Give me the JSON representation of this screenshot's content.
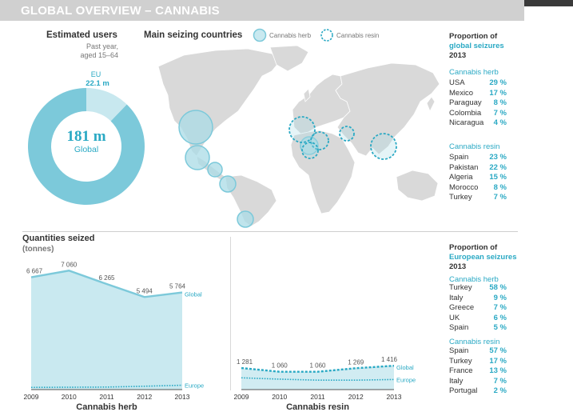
{
  "header": {
    "title": "GLOBAL OVERVIEW – CANNABIS"
  },
  "users": {
    "title": "Estimated users",
    "sub1": "Past year,",
    "sub2": "aged 15–64",
    "eu_label": "EU",
    "eu_value": "22.1 m",
    "global_value": "181 m",
    "global_label": "Global"
  },
  "map": {
    "title": "Main seizing countries",
    "legend_herb": "Cannabis herb",
    "legend_resin": "Cannabis resin"
  },
  "global_seizures": {
    "title": "Proportion of",
    "title2": "global seizures",
    "year": "2013",
    "herb_title": "Cannabis herb",
    "herb": [
      {
        "country": "USA",
        "pct": "29 %"
      },
      {
        "country": "Mexico",
        "pct": "17 %"
      },
      {
        "country": "Paraguay",
        "pct": "8 %"
      },
      {
        "country": "Colombia",
        "pct": "7 %"
      },
      {
        "country": "Nicaragua",
        "pct": "4 %"
      }
    ],
    "resin_title": "Cannabis resin",
    "resin": [
      {
        "country": "Spain",
        "pct": "23 %"
      },
      {
        "country": "Pakistan",
        "pct": "22 %"
      },
      {
        "country": "Algeria",
        "pct": "15 %"
      },
      {
        "country": "Morocco",
        "pct": "8 %"
      },
      {
        "country": "Turkey",
        "pct": "7 %"
      }
    ]
  },
  "european_seizures": {
    "title": "Proportion of",
    "title2": "European seizures",
    "year": "2013",
    "herb_title": "Cannabis herb",
    "herb": [
      {
        "country": "Turkey",
        "pct": "58 %"
      },
      {
        "country": "Italy",
        "pct": "9 %"
      },
      {
        "country": "Greece",
        "pct": "7 %"
      },
      {
        "country": "UK",
        "pct": "6 %"
      },
      {
        "country": "Spain",
        "pct": "5 %"
      }
    ],
    "resin_title": "Cannabis resin",
    "resin": [
      {
        "country": "Spain",
        "pct": "57 %"
      },
      {
        "country": "Turkey",
        "pct": "17 %"
      },
      {
        "country": "France",
        "pct": "13 %"
      },
      {
        "country": "Italy",
        "pct": "7 %"
      },
      {
        "country": "Portugal",
        "pct": "2 %"
      }
    ]
  },
  "quantities": {
    "title": "Quantities seized",
    "unit": "(tonnes)"
  },
  "colors": {
    "accent": "#2aa9c4",
    "herb_fill": "#c9e9f0",
    "herb_line": "#7cc9da",
    "donut": "#7cc9da",
    "donut_eu": "#c8e8ef"
  },
  "chart_data": [
    {
      "type": "pie",
      "categories": [
        "EU",
        "Global"
      ],
      "values": [
        22.1,
        181
      ],
      "labels": [
        "22.1 m",
        "181 m"
      ]
    },
    {
      "type": "area",
      "xlabel": "Cannabis herb",
      "x": [
        "2009",
        "2010",
        "2011",
        "2012",
        "2013"
      ],
      "series": [
        {
          "name": "Global",
          "values": [
            6667,
            7060,
            6265,
            5494,
            5764
          ],
          "labels": [
            "6 667",
            "7 060",
            "6 265",
            "5 494",
            "5 764"
          ]
        },
        {
          "name": "Europe",
          "values": [
            130,
            140,
            150,
            200,
            260
          ]
        }
      ],
      "ylim": [
        0,
        7500
      ]
    },
    {
      "type": "area",
      "xlabel": "Cannabis resin",
      "x": [
        "2009",
        "2010",
        "2011",
        "2012",
        "2013"
      ],
      "series": [
        {
          "name": "Global",
          "values": [
            1281,
            1060,
            1060,
            1269,
            1416
          ],
          "labels": [
            "1 281",
            "1 060",
            "1 060",
            "1 269",
            "1 416"
          ]
        },
        {
          "name": "Europe",
          "values": [
            700,
            620,
            560,
            560,
            600
          ]
        }
      ],
      "ylim": [
        0,
        7500
      ]
    }
  ]
}
